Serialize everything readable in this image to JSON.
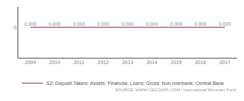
{
  "chart_data": {
    "type": "line",
    "x": [
      2009,
      2010,
      2011,
      2012,
      2013,
      2014,
      2015,
      2016,
      2017
    ],
    "series": [
      {
        "name": "SZ: Deposit Takers: Assets: Financial: Loans: Gross: Non Interbank: Central Bank",
        "color": "#a06090",
        "values": [
          0.0,
          0.0,
          0.0,
          0.0,
          0.0,
          0.0,
          0.0,
          0.0,
          0.0
        ],
        "value_labels": [
          "0.000",
          "0.000",
          "0.000",
          "0.000",
          "0.000",
          "0.000",
          "0.000",
          "0.000",
          "0.000"
        ]
      }
    ],
    "data_labels": true,
    "xlim": [
      2008.5,
      2017.5
    ],
    "xticks": [
      2009,
      2010,
      2011,
      2012,
      2013,
      2014,
      2015,
      2016,
      2017
    ],
    "ylim": [
      -1.5,
      1.0
    ],
    "yticks": [
      0
    ],
    "grid": false,
    "legend": "bottom",
    "annotations": [
      "SOURCE: WWW.CEICDATA.COM | International Monetary Fund"
    ]
  }
}
